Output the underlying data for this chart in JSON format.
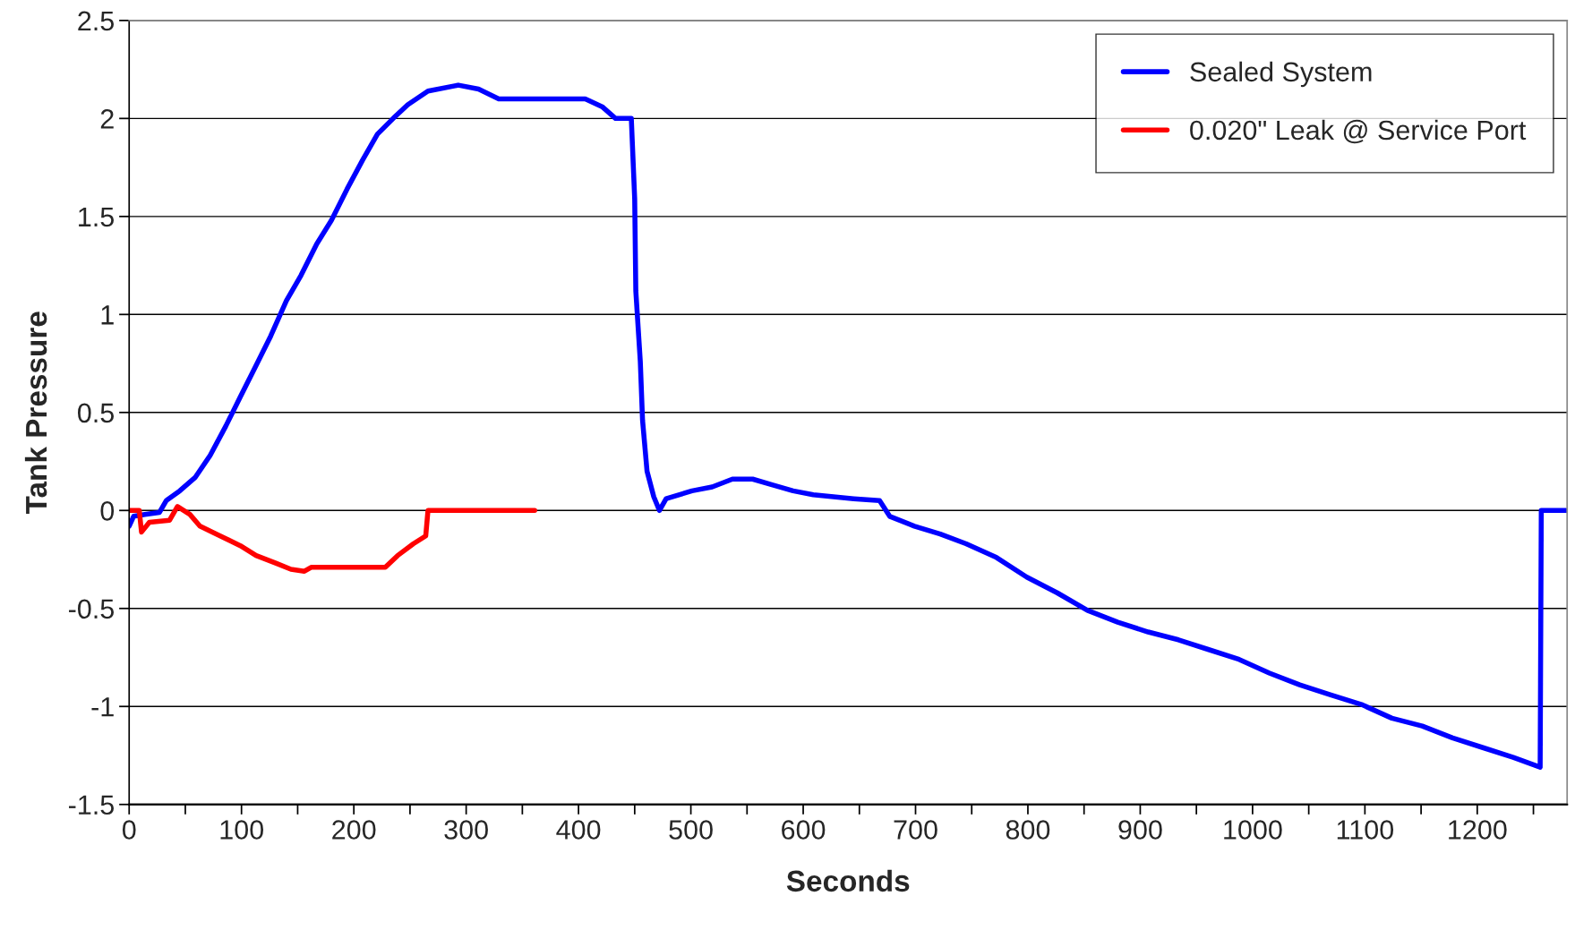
{
  "chart_data": {
    "type": "line",
    "xlabel": "Seconds",
    "ylabel": "Tank Pressure",
    "xlim": [
      0,
      1280
    ],
    "ylim": [
      -1.5,
      2.5
    ],
    "xticks": [
      0,
      {
        "value": 50,
        "label": null
      },
      100,
      {
        "value": 150,
        "label": null
      },
      200,
      {
        "value": 250,
        "label": null
      },
      300,
      {
        "value": 350,
        "label": null
      },
      400,
      {
        "value": 450,
        "label": null
      },
      500,
      {
        "value": 550,
        "label": null
      },
      600,
      {
        "value": 650,
        "label": null
      },
      700,
      {
        "value": 750,
        "label": null
      },
      800,
      {
        "value": 850,
        "label": null
      },
      900,
      {
        "value": 950,
        "label": null
      },
      1000,
      {
        "value": 1050,
        "label": null
      },
      1100,
      {
        "value": 1150,
        "label": null
      },
      1200,
      {
        "value": 1250,
        "label": null
      }
    ],
    "yticks": [
      -1.5,
      -1,
      -0.5,
      0,
      0.5,
      1,
      1.5,
      2,
      2.5
    ],
    "grid": "y",
    "legend": "top right",
    "marker": "none",
    "line_style": "solid",
    "series": [
      {
        "name": "Sealed System",
        "color": "#0000ff",
        "x": [
          0,
          4,
          14,
          27,
          33,
          45,
          59,
          72,
          86,
          99,
          113,
          126,
          140,
          153,
          167,
          180,
          194,
          208,
          221,
          235,
          248,
          266,
          293,
          311,
          329,
          347,
          370,
          388,
          406,
          421,
          433,
          447,
          450,
          451,
          455,
          457,
          461,
          467,
          472,
          478,
          501,
          519,
          537,
          555,
          573,
          591,
          609,
          627,
          645,
          668,
          677,
          699,
          722,
          745,
          772,
          799,
          826,
          853,
          880,
          907,
          934,
          961,
          988,
          1015,
          1042,
          1069,
          1097,
          1124,
          1151,
          1178,
          1205,
          1232,
          1256,
          1257,
          1279
        ],
        "values": [
          -0.08,
          -0.03,
          -0.02,
          -0.01,
          0.05,
          0.1,
          0.17,
          0.28,
          0.43,
          0.58,
          0.74,
          0.89,
          1.07,
          1.2,
          1.36,
          1.48,
          1.64,
          1.79,
          1.92,
          2.0,
          2.07,
          2.14,
          2.17,
          2.15,
          2.1,
          2.1,
          2.1,
          2.1,
          2.1,
          2.06,
          2.0,
          2.0,
          1.59,
          1.12,
          0.76,
          0.46,
          0.2,
          0.07,
          0.0,
          0.06,
          0.1,
          0.12,
          0.16,
          0.16,
          0.13,
          0.1,
          0.08,
          0.07,
          0.06,
          0.05,
          -0.03,
          -0.08,
          -0.12,
          -0.17,
          -0.24,
          -0.34,
          -0.42,
          -0.51,
          -0.57,
          -0.62,
          -0.66,
          -0.71,
          -0.76,
          -0.83,
          -0.89,
          -0.94,
          -0.99,
          -1.06,
          -1.1,
          -1.16,
          -1.21,
          -1.26,
          -1.31,
          0,
          0
        ]
      },
      {
        "name": "0.020\" Leak @ Service Port",
        "color": "#ff0000",
        "x": [
          0,
          9,
          11,
          18,
          36,
          43,
          54,
          63,
          81,
          99,
          113,
          131,
          144,
          156,
          162,
          194,
          228,
          239,
          253,
          264,
          266,
          361
        ],
        "values": [
          0,
          0,
          -0.11,
          -0.06,
          -0.05,
          0.02,
          -0.02,
          -0.08,
          -0.13,
          -0.18,
          -0.23,
          -0.27,
          -0.3,
          -0.31,
          -0.29,
          -0.29,
          -0.29,
          -0.23,
          -0.17,
          -0.13,
          0,
          0
        ]
      }
    ]
  }
}
